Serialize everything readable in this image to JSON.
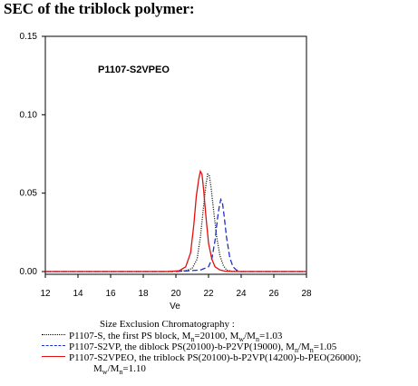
{
  "heading": "SEC of the triblock polymer:",
  "chart_data": {
    "type": "line",
    "title": "P1107-S2VPEO",
    "xlabel": "Ve",
    "ylabel": "",
    "xlim": [
      12,
      28
    ],
    "ylim": [
      -0.002,
      0.15
    ],
    "xticks": [
      "12",
      "14",
      "16",
      "18",
      "20",
      "22",
      "24",
      "26",
      "28"
    ],
    "yticks": [
      "0.00",
      "0.05",
      "0.10",
      "0.15"
    ],
    "caption": "Size Exclusion Chromatography :",
    "series": [
      {
        "name": "P1107-S, the first PS block, Mn=20100, Mw/Mn=1.03",
        "color": "#000000",
        "dash": "1,1.5",
        "x": [
          12,
          19.5,
          20.6,
          21.0,
          21.3,
          21.5,
          21.7,
          21.85,
          21.95,
          22.05,
          22.15,
          22.3,
          22.5,
          22.7,
          22.9,
          23.1,
          23.4,
          24,
          28
        ],
        "y": [
          0,
          0,
          0.0005,
          0.002,
          0.008,
          0.022,
          0.042,
          0.056,
          0.062,
          0.061,
          0.054,
          0.04,
          0.022,
          0.01,
          0.004,
          0.001,
          0.0003,
          0,
          0
        ]
      },
      {
        "name": "P1107-S2VP, the diblock PS(20100)-b-P2VP(19000), Mn/Mn=1.05",
        "color": "#1a2fd0",
        "dash": "6,3",
        "x": [
          12,
          20,
          21.5,
          22.0,
          22.2,
          22.4,
          22.55,
          22.65,
          22.75,
          22.85,
          22.95,
          23.1,
          23.3,
          23.5,
          23.7,
          24,
          28
        ],
        "y": [
          0,
          0,
          0.001,
          0.003,
          0.008,
          0.02,
          0.034,
          0.041,
          0.046,
          0.044,
          0.036,
          0.022,
          0.009,
          0.003,
          0.001,
          0,
          0
        ]
      },
      {
        "name": "P1107-S2VPEO, the triblock PS(20100)-b-P2VP(14200)-b-PEO(26000);",
        "name_cont": "Mw/Mn=1.10",
        "color": "#e01010",
        "dash": "",
        "x": [
          12,
          19.5,
          20.2,
          20.6,
          20.9,
          21.1,
          21.25,
          21.4,
          21.5,
          21.6,
          21.7,
          21.85,
          22.0,
          22.2,
          22.4,
          22.7,
          23.0,
          23.5,
          28
        ],
        "y": [
          0,
          0,
          0.0005,
          0.003,
          0.012,
          0.03,
          0.048,
          0.059,
          0.064,
          0.062,
          0.052,
          0.034,
          0.018,
          0.008,
          0.003,
          0.001,
          0.0003,
          0,
          0
        ]
      }
    ]
  },
  "legend": [
    {
      "pre": "P1107-S, the first PS block, M",
      "sub1": "n",
      "mid": "=20100, M",
      "sub2": "w",
      "mid2": "/M",
      "sub3": "n",
      "post": "=1.03"
    },
    {
      "pre": "P1107-S2VP, the diblock PS(20100)-b-P2VP(19000),  M",
      "sub1": "n",
      "mid": "/M",
      "sub2": "n",
      "post": "=1.05"
    },
    {
      "pre": "P1107-S2VPEO, the triblock PS(20100)-b-P2VP(14200)-b-PEO(26000);"
    },
    {
      "pre": "M",
      "sub1": "w",
      "mid": "/M",
      "sub2": "n",
      "post": "=1.10"
    }
  ]
}
